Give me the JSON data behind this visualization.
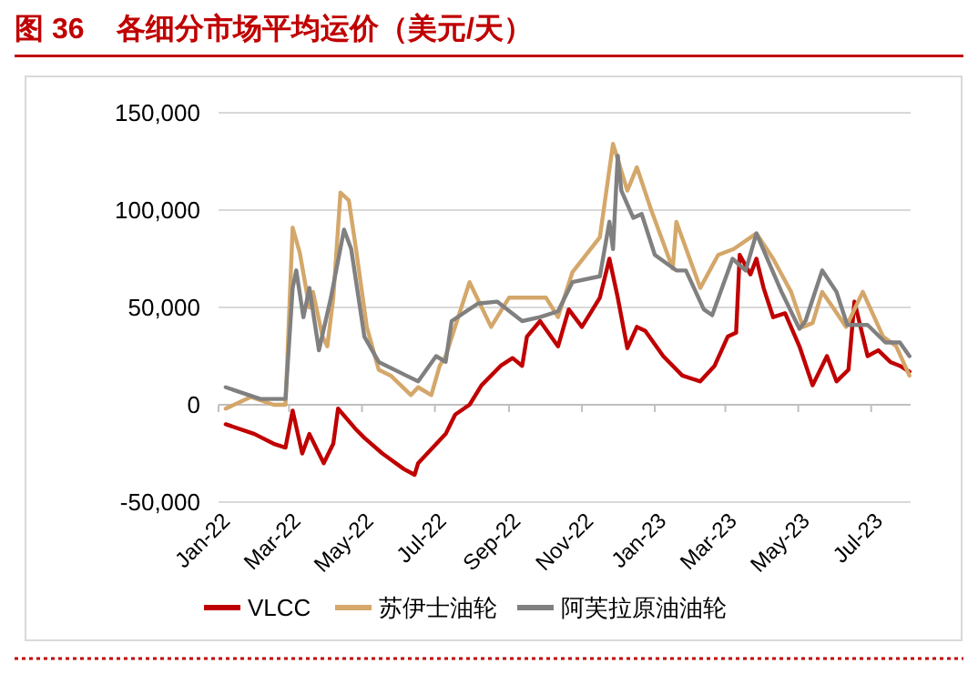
{
  "chart_data": {
    "type": "line",
    "title": "图 36    各细分市场平均运价（美元/天）",
    "xlim": [
      "2022-01-01",
      "2023-08-03"
    ],
    "xticks": [
      {
        "value": "2022-01-01",
        "label": "Jan-22"
      },
      {
        "value": "2022-03-01",
        "label": "Mar-22"
      },
      {
        "value": "2022-05-01",
        "label": "May-22"
      },
      {
        "value": "2022-07-01",
        "label": "Jul-22"
      },
      {
        "value": "2022-09-01",
        "label": "Sep-22"
      },
      {
        "value": "2022-11-01",
        "label": "Nov-22"
      },
      {
        "value": "2023-01-01",
        "label": "Jan-23"
      },
      {
        "value": "2023-03-01",
        "label": "Mar-23"
      },
      {
        "value": "2023-05-01",
        "label": "May-23"
      },
      {
        "value": "2023-07-01",
        "label": "Jul-23"
      }
    ],
    "ylim": [
      -50000,
      150000
    ],
    "yticks": [
      {
        "value": -50000,
        "label": "-50,000"
      },
      {
        "value": 0,
        "label": "0"
      },
      {
        "value": 50000,
        "label": "50,000"
      },
      {
        "value": 100000,
        "label": "100,000"
      },
      {
        "value": 150000,
        "label": "150,000"
      }
    ],
    "grid": "y",
    "legend": "bottom",
    "line_style": "solid",
    "marker": "none",
    "series": [
      {
        "name": "VLCC",
        "color": "#c00000",
        "x": [
          "2022-01-07",
          "2022-01-31",
          "2022-02-16",
          "2022-02-26",
          "2022-03-04",
          "2022-03-12",
          "2022-03-18",
          "2022-03-30",
          "2022-04-07",
          "2022-04-11",
          "2022-04-25",
          "2022-05-03",
          "2022-05-18",
          "2022-06-05",
          "2022-06-14",
          "2022-06-17",
          "2022-07-10",
          "2022-07-18",
          "2022-07-30",
          "2022-08-09",
          "2022-08-25",
          "2022-09-04",
          "2022-09-12",
          "2022-09-16",
          "2022-09-27",
          "2022-10-12",
          "2022-10-21",
          "2022-11-01",
          "2022-11-16",
          "2022-11-24",
          "2022-12-01",
          "2022-12-09",
          "2022-12-17",
          "2022-12-24",
          "2023-01-08",
          "2023-01-24",
          "2023-02-08",
          "2023-02-20",
          "2023-03-03",
          "2023-03-10",
          "2023-03-13",
          "2023-03-22",
          "2023-03-27",
          "2023-04-02",
          "2023-04-10",
          "2023-04-20",
          "2023-05-02",
          "2023-05-13",
          "2023-05-25",
          "2023-06-02",
          "2023-06-12",
          "2023-06-17",
          "2023-06-28",
          "2023-07-07",
          "2023-07-17",
          "2023-07-25",
          "2023-08-02"
        ],
        "values": [
          -10000,
          -15000,
          -20000,
          -22000,
          -3000,
          -25000,
          -15000,
          -30000,
          -20000,
          -2000,
          -12000,
          -17000,
          -25000,
          -33000,
          -36000,
          -30000,
          -15000,
          -5000,
          0,
          10000,
          20000,
          24000,
          20000,
          35000,
          43000,
          30000,
          49000,
          40000,
          55000,
          75000,
          55000,
          29000,
          40000,
          38000,
          25000,
          15000,
          12000,
          20000,
          35000,
          37000,
          77000,
          67000,
          75000,
          60000,
          45000,
          47000,
          30000,
          10000,
          25000,
          12000,
          18000,
          53000,
          25000,
          28000,
          22000,
          20000,
          17000
        ]
      },
      {
        "name": "苏伊士油轮",
        "color": "#d4a76a",
        "x": [
          "2022-01-07",
          "2022-01-28",
          "2022-02-16",
          "2022-02-26",
          "2022-03-04",
          "2022-03-10",
          "2022-03-18",
          "2022-03-21",
          "2022-03-29",
          "2022-04-02",
          "2022-04-07",
          "2022-04-13",
          "2022-04-20",
          "2022-04-26",
          "2022-05-05",
          "2022-05-15",
          "2022-05-25",
          "2022-06-11",
          "2022-06-17",
          "2022-06-28",
          "2022-07-05",
          "2022-07-10",
          "2022-07-30",
          "2022-08-17",
          "2022-09-01",
          "2022-10-02",
          "2022-10-12",
          "2022-10-24",
          "2022-11-16",
          "2022-11-27",
          "2022-12-09",
          "2022-12-17",
          "2022-12-29",
          "2023-01-16",
          "2023-01-19",
          "2023-02-08",
          "2023-02-23",
          "2023-03-08",
          "2023-03-27",
          "2023-04-10",
          "2023-04-25",
          "2023-05-05",
          "2023-05-13",
          "2023-05-21",
          "2023-05-30",
          "2023-06-10",
          "2023-06-24",
          "2023-07-11",
          "2023-07-22",
          "2023-08-02"
        ],
        "values": [
          -2000,
          4000,
          0,
          0,
          91000,
          78000,
          50000,
          58000,
          35000,
          30000,
          55000,
          109000,
          105000,
          80000,
          40000,
          18000,
          15000,
          5000,
          9000,
          5000,
          20000,
          25000,
          63000,
          40000,
          55000,
          55000,
          45000,
          68000,
          86000,
          134000,
          110000,
          122000,
          100000,
          70000,
          94000,
          60000,
          77000,
          80000,
          88000,
          75000,
          58000,
          40000,
          42000,
          58000,
          50000,
          40000,
          58000,
          35000,
          30000,
          15000
        ]
      },
      {
        "name": "阿芙拉原油油轮",
        "color": "#808080",
        "x": [
          "2022-01-07",
          "2022-02-05",
          "2022-02-26",
          "2022-03-04",
          "2022-03-07",
          "2022-03-13",
          "2022-03-18",
          "2022-03-26",
          "2022-04-05",
          "2022-04-16",
          "2022-04-22",
          "2022-05-03",
          "2022-05-15",
          "2022-06-07",
          "2022-06-17",
          "2022-07-02",
          "2022-07-10",
          "2022-07-15",
          "2022-08-06",
          "2022-08-22",
          "2022-09-12",
          "2022-09-27",
          "2022-10-12",
          "2022-10-24",
          "2022-11-16",
          "2022-11-24",
          "2022-11-27",
          "2022-12-01",
          "2022-12-04",
          "2022-12-14",
          "2022-12-21",
          "2023-01-01",
          "2023-01-19",
          "2023-01-27",
          "2023-02-11",
          "2023-02-18",
          "2023-03-07",
          "2023-03-18",
          "2023-03-27",
          "2023-04-17",
          "2023-05-02",
          "2023-05-07",
          "2023-05-21",
          "2023-06-02",
          "2023-06-11",
          "2023-06-28",
          "2023-07-13",
          "2023-07-25",
          "2023-08-02"
        ],
        "values": [
          9000,
          3000,
          3000,
          60000,
          69000,
          45000,
          60000,
          28000,
          55000,
          90000,
          80000,
          35000,
          22000,
          15000,
          12000,
          25000,
          22000,
          43000,
          52000,
          53000,
          43000,
          45000,
          48000,
          63000,
          66000,
          94000,
          80000,
          128000,
          110000,
          96000,
          98000,
          77000,
          69000,
          69000,
          49000,
          46000,
          75000,
          69000,
          88000,
          58000,
          39000,
          43000,
          69000,
          58000,
          41000,
          41000,
          32000,
          32000,
          25000
        ]
      }
    ]
  }
}
